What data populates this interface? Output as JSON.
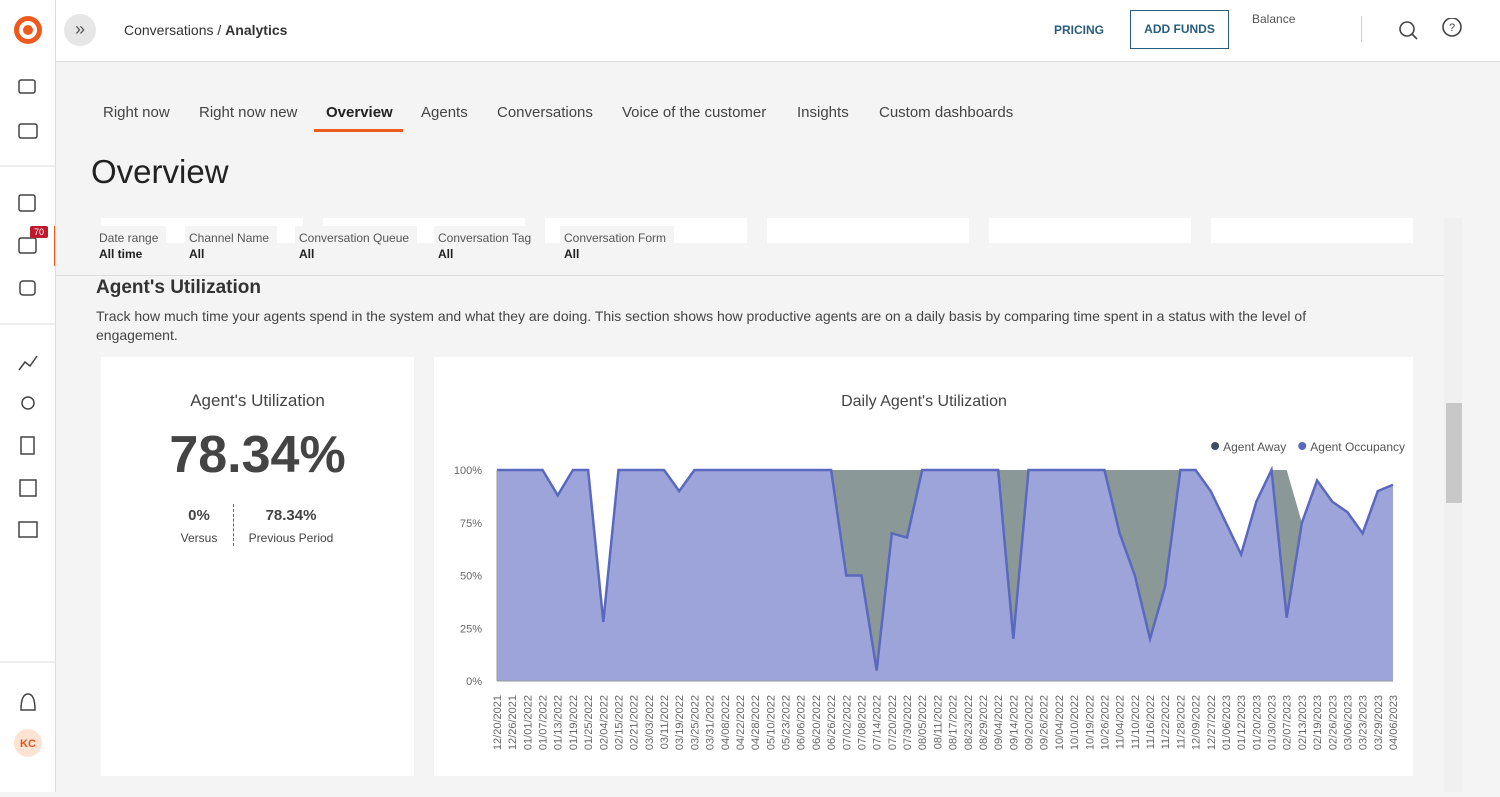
{
  "header": {
    "breadcrumb_parent": "Conversations /",
    "breadcrumb_current": "Analytics",
    "pricing": "PRICING",
    "add_funds": "ADD FUNDS",
    "balance": "Balance"
  },
  "sidebar": {
    "badge": "70",
    "avatar": "KC"
  },
  "tabs": [
    "Right now",
    "Right now new",
    "Overview",
    "Agents",
    "Conversations",
    "Voice of the customer",
    "Insights",
    "Custom dashboards"
  ],
  "page_title": "Overview",
  "filters": [
    {
      "label": "Date range",
      "value": "All time"
    },
    {
      "label": "Channel Name",
      "value": "All"
    },
    {
      "label": "Conversation Queue",
      "value": "All"
    },
    {
      "label": "Conversation Tag",
      "value": "All"
    },
    {
      "label": "Conversation Form",
      "value": "All"
    }
  ],
  "section": {
    "title": "Agent's Utilization",
    "description": "Track how much time your agents spend in the system and what they are doing. This section shows how productive agents are on a daily basis by comparing time spent in a status with the level of engagement."
  },
  "kpi": {
    "title": "Agent's Utilization",
    "value": "78.34%",
    "versus_value": "0%",
    "versus_label": "Versus",
    "previous_value": "78.34%",
    "previous_label": "Previous Period"
  },
  "chart_data": {
    "type": "area",
    "title": "Daily Agent's Utilization",
    "categories": [
      "12/20/2021",
      "12/26/2021",
      "01/01/2022",
      "01/07/2022",
      "01/13/2022",
      "01/19/2022",
      "01/25/2022",
      "02/04/2022",
      "02/15/2022",
      "02/21/2022",
      "03/03/2022",
      "03/11/2022",
      "03/19/2022",
      "03/25/2022",
      "03/31/2022",
      "04/08/2022",
      "04/22/2022",
      "04/28/2022",
      "05/10/2022",
      "05/23/2022",
      "06/06/2022",
      "06/20/2022",
      "06/26/2022",
      "07/02/2022",
      "07/08/2022",
      "07/14/2022",
      "07/20/2022",
      "07/30/2022",
      "08/05/2022",
      "08/11/2022",
      "08/17/2022",
      "08/23/2022",
      "08/29/2022",
      "09/04/2022",
      "09/14/2022",
      "09/20/2022",
      "09/26/2022",
      "10/04/2022",
      "10/10/2022",
      "10/19/2022",
      "10/26/2022",
      "11/04/2022",
      "11/10/2022",
      "11/16/2022",
      "11/22/2022",
      "11/28/2022",
      "12/09/2022",
      "12/27/2022",
      "01/06/2023",
      "01/12/2023",
      "01/20/2023",
      "01/30/2023",
      "02/07/2023",
      "02/13/2023",
      "02/19/2023",
      "02/26/2023",
      "03/06/2023",
      "03/23/2023",
      "03/29/2023",
      "04/06/2023"
    ],
    "series": [
      {
        "name": "Agent Occupancy",
        "color": "#5b68c0",
        "values": [
          100,
          100,
          100,
          100,
          88,
          100,
          100,
          28,
          100,
          100,
          100,
          100,
          90,
          100,
          100,
          100,
          100,
          100,
          100,
          100,
          100,
          100,
          100,
          50,
          50,
          5,
          70,
          68,
          100,
          100,
          100,
          100,
          100,
          100,
          20,
          100,
          100,
          100,
          100,
          100,
          100,
          70,
          50,
          20,
          45,
          100,
          100,
          90,
          75,
          60,
          85,
          100,
          30,
          75,
          95,
          85,
          80,
          70,
          90,
          93
        ]
      },
      {
        "name": "Agent Away",
        "color": "#8a9898",
        "values": [
          0,
          0,
          0,
          0,
          0,
          0,
          0,
          0,
          0,
          0,
          0,
          0,
          0,
          0,
          0,
          0,
          0,
          0,
          0,
          0,
          0,
          0,
          0,
          50,
          50,
          95,
          30,
          32,
          0,
          0,
          0,
          0,
          0,
          0,
          80,
          0,
          0,
          0,
          0,
          0,
          0,
          30,
          50,
          80,
          55,
          0,
          0,
          0,
          0,
          0,
          0,
          0,
          70,
          0,
          0,
          0,
          0,
          0,
          0,
          0
        ]
      }
    ],
    "legend_order": [
      1,
      0
    ],
    "ylim": [
      0,
      100
    ],
    "yticks": [
      {
        "value": 0,
        "label": "0%"
      },
      {
        "value": 25,
        "label": "25%"
      },
      {
        "value": 50,
        "label": "50%"
      },
      {
        "value": 75,
        "label": "75%"
      },
      {
        "value": 100,
        "label": "100%"
      }
    ],
    "grid": false
  }
}
